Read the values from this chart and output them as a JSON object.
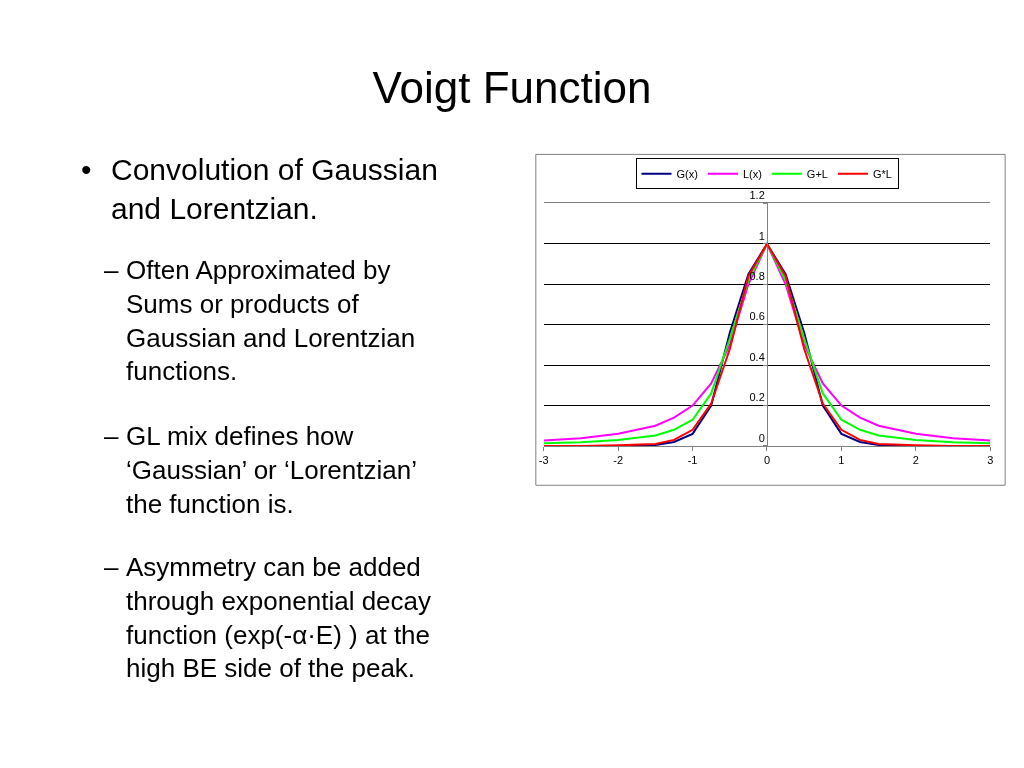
{
  "chart_data": {
    "type": "line",
    "title": "Voigt Function",
    "annotations": [
      "• Convolution of Gaussian\nand Lorentzian.",
      "– Often Approximated by\nSums or products of\nGaussian and Lorentzian\nfunctions.",
      "– GL mix defines how\n‘Gaussian’ or ‘Lorentzian’\nthe function is.",
      "– Asymmetry can be added\nthrough exponential decay\nfunction (exp(-α·E) ) at the\nhigh BE side of the peak."
    ],
    "x": [
      -3,
      -2.5,
      -2,
      -1.5,
      -1.25,
      -1,
      -0.75,
      -0.5,
      -0.25,
      0,
      0.25,
      0.5,
      0.75,
      1,
      1.25,
      1.5,
      2,
      2.5,
      3
    ],
    "series": [
      {
        "name": "G(x)",
        "color": "#000080",
        "values": [
          null,
          null,
          0,
          0.005,
          0.02,
          0.06,
          0.2,
          0.56,
          0.85,
          1,
          0.85,
          0.56,
          0.2,
          0.06,
          0.02,
          0.005,
          0,
          null,
          null
        ]
      },
      {
        "name": "L(x)",
        "color": "#ff00ff",
        "values": [
          0.027,
          0.038,
          0.06,
          0.1,
          0.14,
          0.2,
          0.31,
          0.5,
          0.8,
          1,
          0.8,
          0.5,
          0.31,
          0.2,
          0.14,
          0.1,
          0.06,
          0.038,
          0.027
        ]
      },
      {
        "name": "G+L",
        "color": "#00ff00",
        "values": [
          0.014,
          0.019,
          0.03,
          0.052,
          0.08,
          0.13,
          0.26,
          0.53,
          0.82,
          1,
          0.82,
          0.53,
          0.26,
          0.13,
          0.08,
          0.052,
          0.03,
          0.019,
          0.014
        ]
      },
      {
        "name": "G*L",
        "color": "#ff0000",
        "values": [
          0,
          0,
          0.003,
          0.01,
          0.03,
          0.08,
          0.21,
          0.48,
          0.84,
          1,
          0.84,
          0.48,
          0.21,
          0.08,
          0.03,
          0.01,
          0.003,
          0,
          0
        ]
      }
    ],
    "xlim": [
      -3,
      3
    ],
    "xticks": [
      -3,
      -2,
      -1,
      0,
      1,
      2,
      3
    ],
    "ylim": [
      0,
      1.2
    ],
    "yticks": [
      0,
      0.2,
      0.4,
      0.6,
      0.8,
      1,
      1.2
    ],
    "grid": "y",
    "legend": "top",
    "marker": "none",
    "line_style": "solid"
  }
}
